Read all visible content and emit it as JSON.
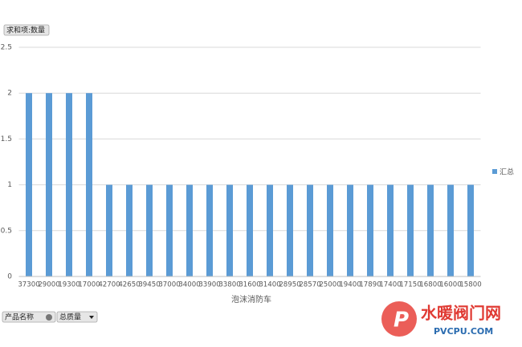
{
  "chart_data": {
    "type": "bar",
    "value_field_button": "求和项:数量",
    "x_label": "泡沫消防车",
    "categories": [
      "37300",
      "29000",
      "19300",
      "17000",
      "42700",
      "42650",
      "39450",
      "37000",
      "34000",
      "33900",
      "33800",
      "31600",
      "31400",
      "28950",
      "28570",
      "25000",
      "19400",
      "17890",
      "17400",
      "17150",
      "16800",
      "16000",
      "15800"
    ],
    "series": [
      {
        "name": "汇总",
        "color": "#5b9bd5",
        "values": [
          2,
          2,
          2,
          2,
          1,
          1,
          1,
          1,
          1,
          1,
          1,
          1,
          1,
          1,
          1,
          1,
          1,
          1,
          1,
          1,
          1,
          1,
          1
        ]
      }
    ],
    "ylim": [
      0,
      2.5
    ],
    "yticks": [
      0,
      0.5,
      1,
      1.5,
      2,
      2.5
    ],
    "grid": true,
    "legend": "right",
    "axis_field_buttons": [
      "产品名称",
      "总质量"
    ]
  },
  "watermark": {
    "title": "水暖阀门网",
    "url": "PVCPU.COM"
  }
}
